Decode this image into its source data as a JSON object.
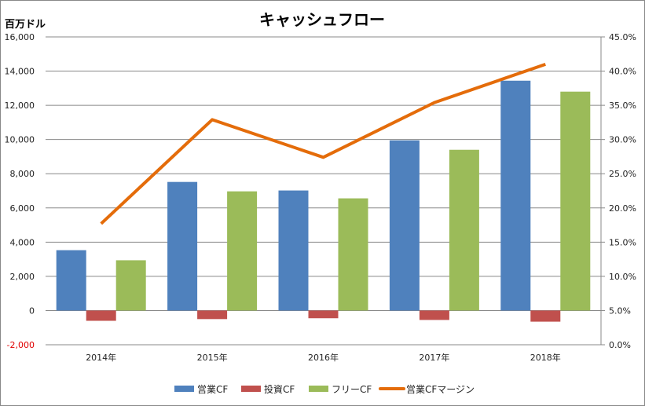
{
  "chart_data": {
    "type": "bar+line",
    "title": "キャッシュフロー",
    "ylabel": "百万ドル",
    "categories": [
      "2014年",
      "2015年",
      "2016年",
      "2017年",
      "2018年"
    ],
    "ylim": [
      -2000,
      16000
    ],
    "yticks": [
      "-2,000",
      "0",
      "2,000",
      "4,000",
      "6,000",
      "8,000",
      "10,000",
      "12,000",
      "14,000",
      "16,000"
    ],
    "y2lim": [
      0,
      45
    ],
    "y2ticks": [
      "0.0%",
      "5.0%",
      "10.0%",
      "15.0%",
      "20.0%",
      "25.0%",
      "30.0%",
      "35.0%",
      "40.0%",
      "45.0%"
    ],
    "grid": true,
    "legend": "bottom",
    "series": [
      {
        "name": "営業CF",
        "type": "bar",
        "color": "#4f81bd",
        "values": [
          3530,
          7520,
          7020,
          9950,
          13440
        ]
      },
      {
        "name": "投資CF",
        "type": "bar",
        "color": "#c0504d",
        "values": [
          -600,
          -500,
          -450,
          -550,
          -650
        ]
      },
      {
        "name": "フリーCF",
        "type": "bar",
        "color": "#9bbb59",
        "values": [
          2940,
          6970,
          6560,
          9400,
          12800
        ]
      },
      {
        "name": "営業CFマージン",
        "type": "line",
        "axis": "right",
        "color": "#e46c0a",
        "values": [
          17.7,
          32.9,
          27.4,
          35.4,
          41.0
        ]
      }
    ]
  }
}
